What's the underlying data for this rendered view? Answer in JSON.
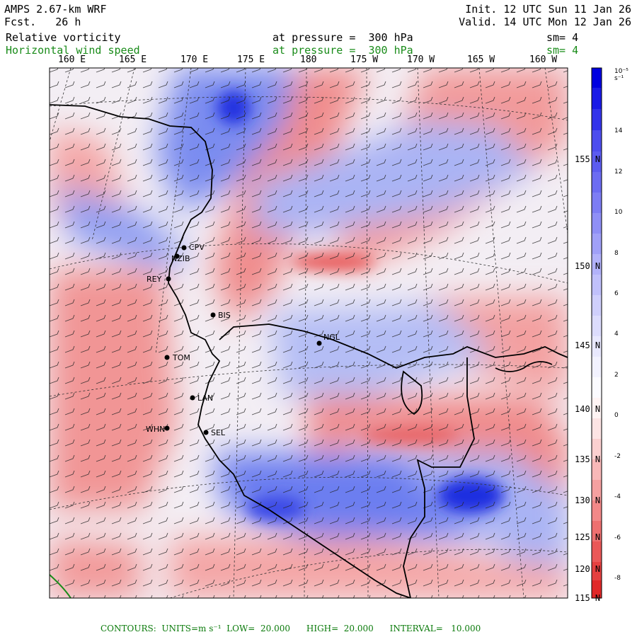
{
  "header": {
    "model": "AMPS 2.67-km WRF",
    "fcst_label": "Fcst.",
    "fcst_value": "26 h",
    "init": "Init. 12 UTC Sun 11 Jan 26",
    "valid": "Valid. 14 UTC Mon 12 Jan 26",
    "field1": {
      "name": "Relative vorticity",
      "pressure": "at pressure =  300 hPa",
      "sm": "sm= 4"
    },
    "field2": {
      "name": "Horizontal wind speed",
      "pressure": "at pressure =  300 hPa",
      "sm": "sm= 4",
      "color": "#1a8c1a"
    }
  },
  "lon_labels": [
    "160 E",
    "165 E",
    "170 E",
    "175 E",
    "180",
    "175 W",
    "170 W",
    "165 W",
    "160 W"
  ],
  "lat_labels": [
    "155",
    "150",
    "145",
    "140",
    "135",
    "130",
    "125",
    "120",
    "115"
  ],
  "colorbar": {
    "units": "10⁻⁵ s⁻¹",
    "ticks": [
      "14",
      "12",
      "10",
      "8",
      "6",
      "4",
      "2",
      "0",
      "-2",
      "-4",
      "-6",
      "-8"
    ],
    "positive_color": "#0000e0",
    "negative_color": "#e00000"
  },
  "stations": [
    {
      "id": "CPV"
    },
    {
      "id": "NZIB"
    },
    {
      "id": "REY"
    },
    {
      "id": "BIS"
    },
    {
      "id": "NGL"
    },
    {
      "id": "TOM"
    },
    {
      "id": "LAN"
    },
    {
      "id": "WHN"
    },
    {
      "id": "SEL"
    }
  ],
  "footer": {
    "text": "CONTOURS:  UNITS=m s⁻¹  LOW=  20.000      HIGH=  20.000      INTERVAL=   10.000"
  }
}
